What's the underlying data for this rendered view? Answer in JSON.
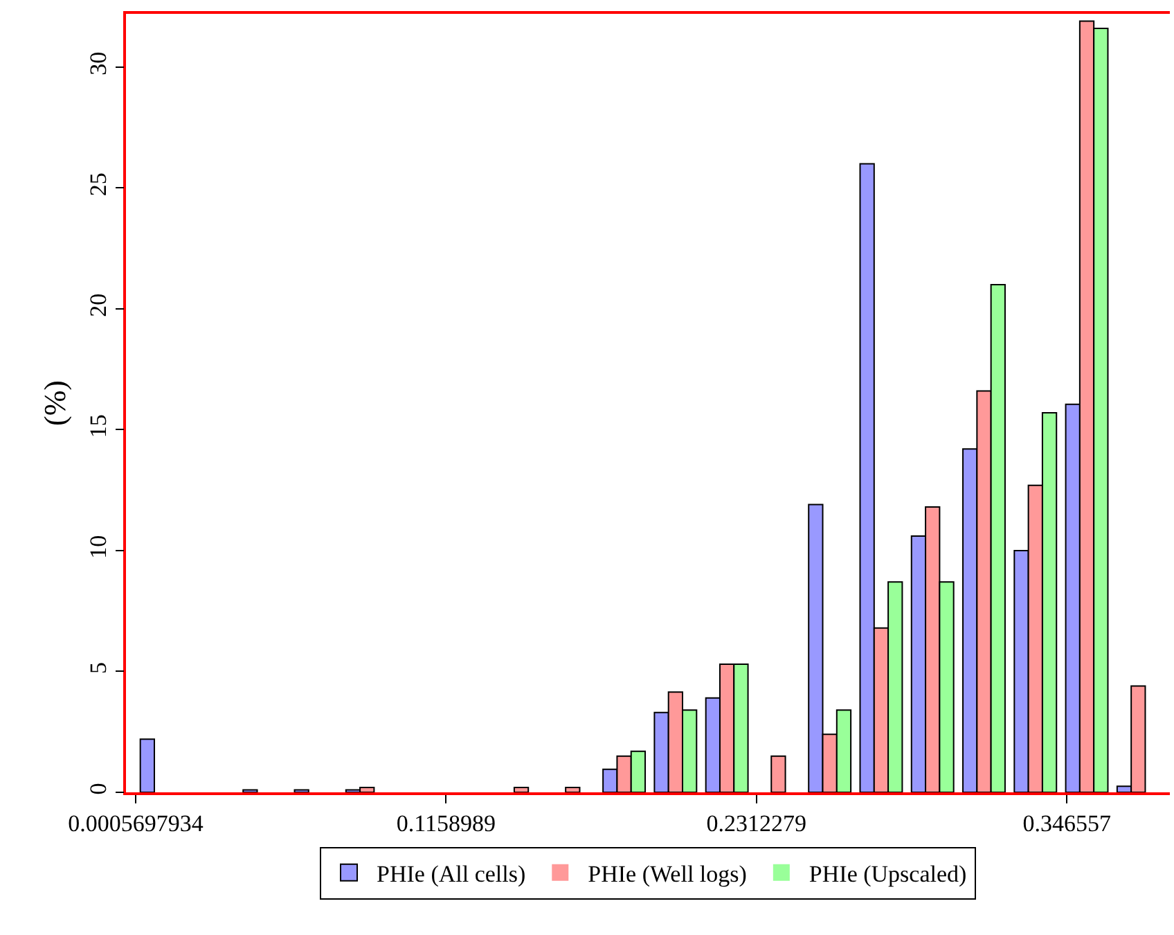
{
  "chart_data": {
    "type": "histogram",
    "ylabel": "(%)",
    "bins": [
      0.0006,
      0.0197,
      0.0388,
      0.0579,
      0.077,
      0.0961,
      0.1152,
      0.1343,
      0.1534,
      0.1725,
      0.1916,
      0.2107,
      0.2298,
      0.2489,
      0.268,
      0.2871,
      0.3062,
      0.3253,
      0.3444,
      0.3635,
      0.3826
    ],
    "series": [
      {
        "name": "PHIe (All cells)",
        "color": "#9999ff",
        "values": [
          2.2,
          0,
          0.1,
          0.1,
          0.1,
          0,
          0,
          0,
          0,
          0.95,
          3.3,
          3.9,
          0,
          11.9,
          26.0,
          10.6,
          14.2,
          10.0,
          16.05,
          0.25
        ]
      },
      {
        "name": "PHIe (Well logs)",
        "color": "#ff9999",
        "values": [
          0,
          0,
          0,
          0,
          0.2,
          0,
          0,
          0.2,
          0.2,
          1.5,
          4.15,
          5.3,
          1.5,
          2.4,
          6.8,
          11.8,
          16.6,
          12.7,
          31.9,
          4.4
        ]
      },
      {
        "name": "PHIe (Upscaled)",
        "color": "#99ff99",
        "values": [
          0,
          0,
          0,
          0,
          0,
          0,
          0,
          0,
          0,
          1.7,
          3.4,
          5.3,
          0,
          3.4,
          8.7,
          8.7,
          21.0,
          15.7,
          31.6,
          0
        ]
      }
    ],
    "xlim": [
      -0.003,
      0.3848
    ],
    "xticks": [
      0.0005697934,
      0.1158989,
      0.2312279,
      0.346557
    ],
    "ylim": [
      0,
      32.2
    ],
    "yticks": [
      0,
      5,
      10,
      15,
      20,
      25,
      30
    ],
    "grid": false,
    "legend": "bottom"
  }
}
